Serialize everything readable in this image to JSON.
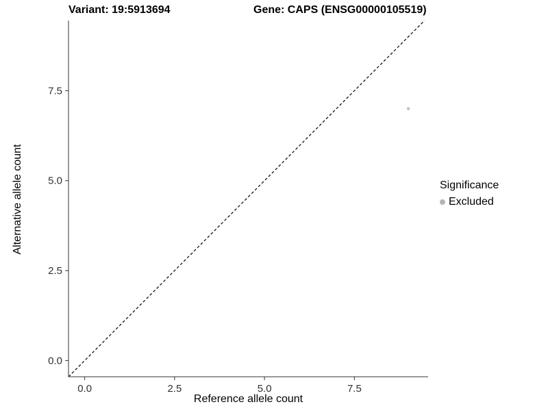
{
  "chart_data": {
    "type": "scatter",
    "title_left": "Variant: 19:5913694",
    "title_right": "Gene: CAPS (ENSG00000105519)",
    "xlabel": "Reference allele count",
    "ylabel": "Alternative allele count",
    "xlim": [
      -0.45,
      9.55
    ],
    "ylim": [
      -0.45,
      9.45
    ],
    "xticks": [
      0.0,
      2.5,
      5.0,
      7.5
    ],
    "yticks": [
      0.0,
      2.5,
      5.0,
      7.5
    ],
    "identity_line": {
      "style": "dashed",
      "from": -0.45,
      "to": 9.45
    },
    "points": [
      {
        "x": 9,
        "y": 7,
        "series": "Excluded"
      }
    ],
    "point_color": "#c2c2c2",
    "axis_color": "#333333",
    "line_color": "#000000",
    "legend": {
      "title": "Significance",
      "entries": [
        {
          "label": "Excluded",
          "color": "#b5b5b5"
        }
      ]
    }
  }
}
